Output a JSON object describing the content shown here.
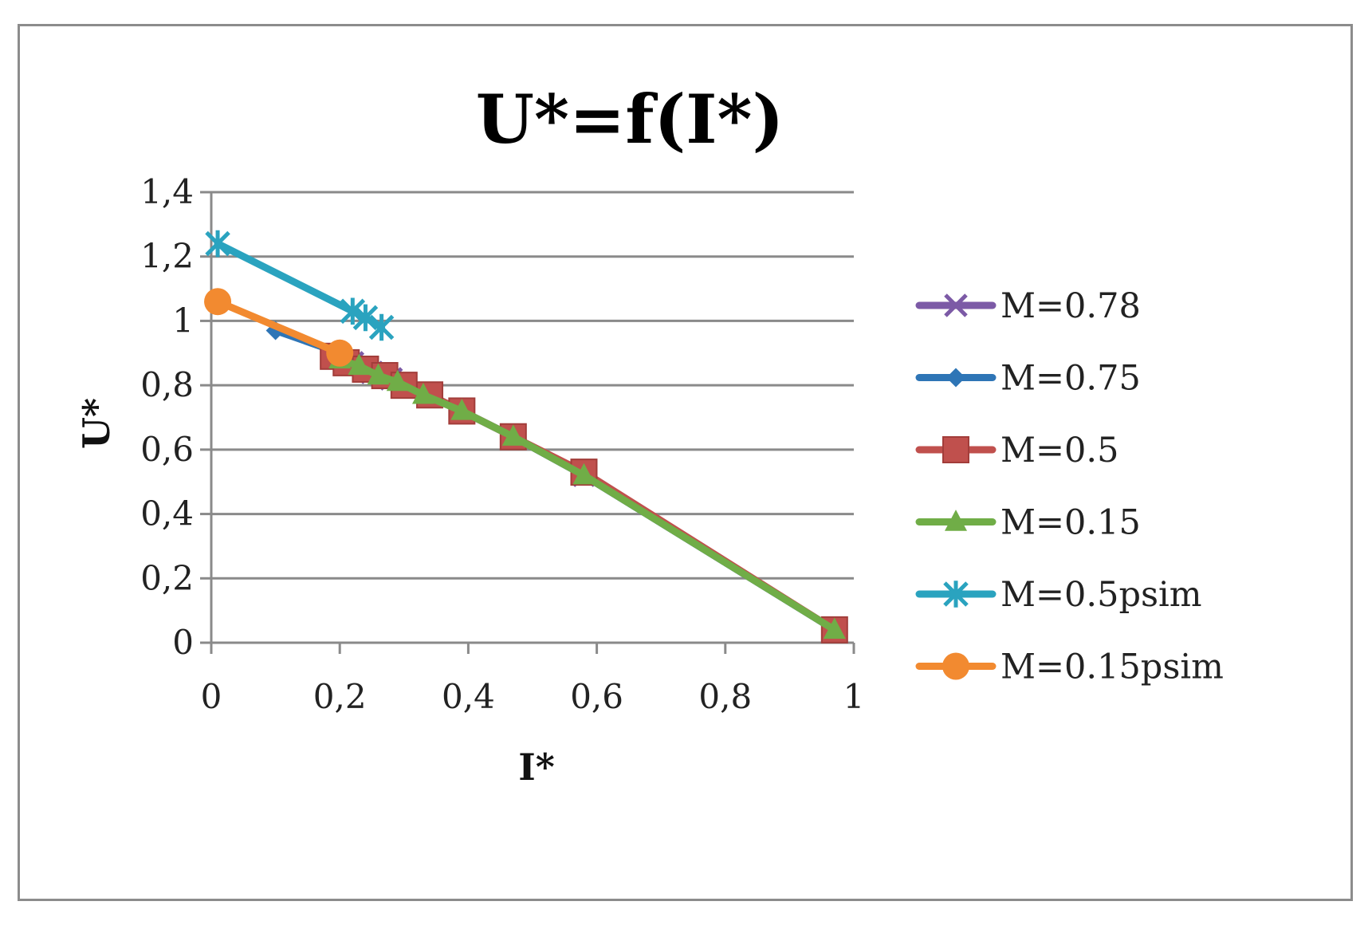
{
  "chart_data": {
    "type": "line",
    "title": "U*=f(I*)",
    "xlabel": "I*",
    "ylabel": "U*",
    "xlim": [
      0,
      1
    ],
    "ylim": [
      0,
      1.4
    ],
    "x_ticks": [
      0,
      0.2,
      0.4,
      0.6,
      0.8,
      1
    ],
    "x_tick_labels": [
      "0",
      "0,2",
      "0,4",
      "0,6",
      "0,8",
      "1"
    ],
    "y_ticks": [
      0,
      0.2,
      0.4,
      0.6,
      0.8,
      1,
      1.2,
      1.4
    ],
    "y_tick_labels": [
      "0",
      "0,2",
      "0,4",
      "0,6",
      "0,8",
      "1",
      "1,2",
      "1,4"
    ],
    "grid": "horizontal",
    "legend_position": "right",
    "series": [
      {
        "name": "M=0.78",
        "color": "#7c5aa6",
        "marker": "x",
        "points": [
          [
            0.2,
            0.89
          ],
          [
            0.22,
            0.87
          ],
          [
            0.25,
            0.84
          ],
          [
            0.28,
            0.82
          ],
          [
            0.3,
            0.8
          ],
          [
            0.34,
            0.77
          ],
          [
            0.39,
            0.72
          ],
          [
            0.47,
            0.64
          ],
          [
            0.58,
            0.52
          ],
          [
            0.97,
            0.04
          ]
        ]
      },
      {
        "name": "M=0.75",
        "color": "#2e75b6",
        "marker": "diamond",
        "points": [
          [
            0.1,
            0.97
          ],
          [
            0.2,
            0.9
          ],
          [
            0.24,
            0.86
          ],
          [
            0.3,
            0.8
          ],
          [
            0.39,
            0.72
          ],
          [
            0.47,
            0.64
          ],
          [
            0.58,
            0.52
          ],
          [
            0.97,
            0.04
          ]
        ]
      },
      {
        "name": "M=0.5",
        "color": "#c0504d",
        "marker": "square",
        "points": [
          [
            0.19,
            0.89
          ],
          [
            0.21,
            0.87
          ],
          [
            0.24,
            0.85
          ],
          [
            0.27,
            0.83
          ],
          [
            0.3,
            0.8
          ],
          [
            0.34,
            0.77
          ],
          [
            0.39,
            0.72
          ],
          [
            0.47,
            0.64
          ],
          [
            0.58,
            0.53
          ],
          [
            0.97,
            0.04
          ]
        ]
      },
      {
        "name": "M=0.15",
        "color": "#70ad47",
        "marker": "triangle",
        "points": [
          [
            0.2,
            0.88
          ],
          [
            0.23,
            0.86
          ],
          [
            0.26,
            0.83
          ],
          [
            0.29,
            0.81
          ],
          [
            0.33,
            0.77
          ],
          [
            0.39,
            0.72
          ],
          [
            0.47,
            0.64
          ],
          [
            0.58,
            0.52
          ],
          [
            0.97,
            0.04
          ]
        ]
      },
      {
        "name": "M=0.5psim",
        "color": "#2aa3bf",
        "marker": "asterisk",
        "points": [
          [
            0.01,
            1.24
          ],
          [
            0.22,
            1.03
          ],
          [
            0.24,
            1.01
          ],
          [
            0.265,
            0.98
          ]
        ]
      },
      {
        "name": "M=0.15psim",
        "color": "#f28a30",
        "marker": "circle",
        "points": [
          [
            0.01,
            1.06
          ],
          [
            0.2,
            0.9
          ]
        ]
      }
    ]
  }
}
